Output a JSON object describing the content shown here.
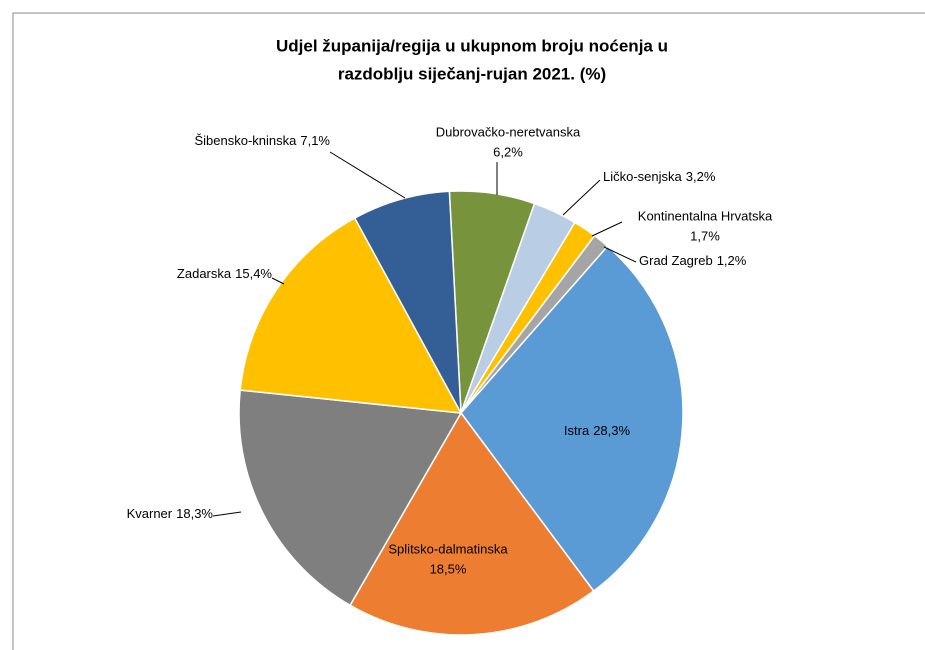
{
  "chart_data": {
    "type": "pie",
    "title": [
      "Udjel županija/regija u ukupnom broju noćenja u",
      "razdoblju siječanj-rujan 2021. (%)"
    ],
    "categories": [
      "Dubrovačko-neretvanska",
      "Ličko-senjska",
      "Kontinentalna Hrvatska",
      "Grad Zagreb",
      "Istra",
      "Splitsko-dalmatinska",
      "Kvarner",
      "Zadarska",
      "Šibensko-kninska"
    ],
    "values": [
      6.2,
      3.2,
      1.7,
      1.2,
      28.3,
      18.5,
      18.3,
      15.4,
      7.1
    ],
    "value_labels": [
      "6,2%",
      "3,2%",
      "1,7%",
      "1,2%",
      "28,3%",
      "18,5%",
      "18,3%",
      "15,4%",
      "7,1%"
    ],
    "colors": [
      "#77933c",
      "#b9cde5",
      "#ffc000",
      "#a5a5a5",
      "#5b9bd5",
      "#ed7d31",
      "#7f7f7f",
      "#ffc000",
      "#345e96"
    ]
  }
}
